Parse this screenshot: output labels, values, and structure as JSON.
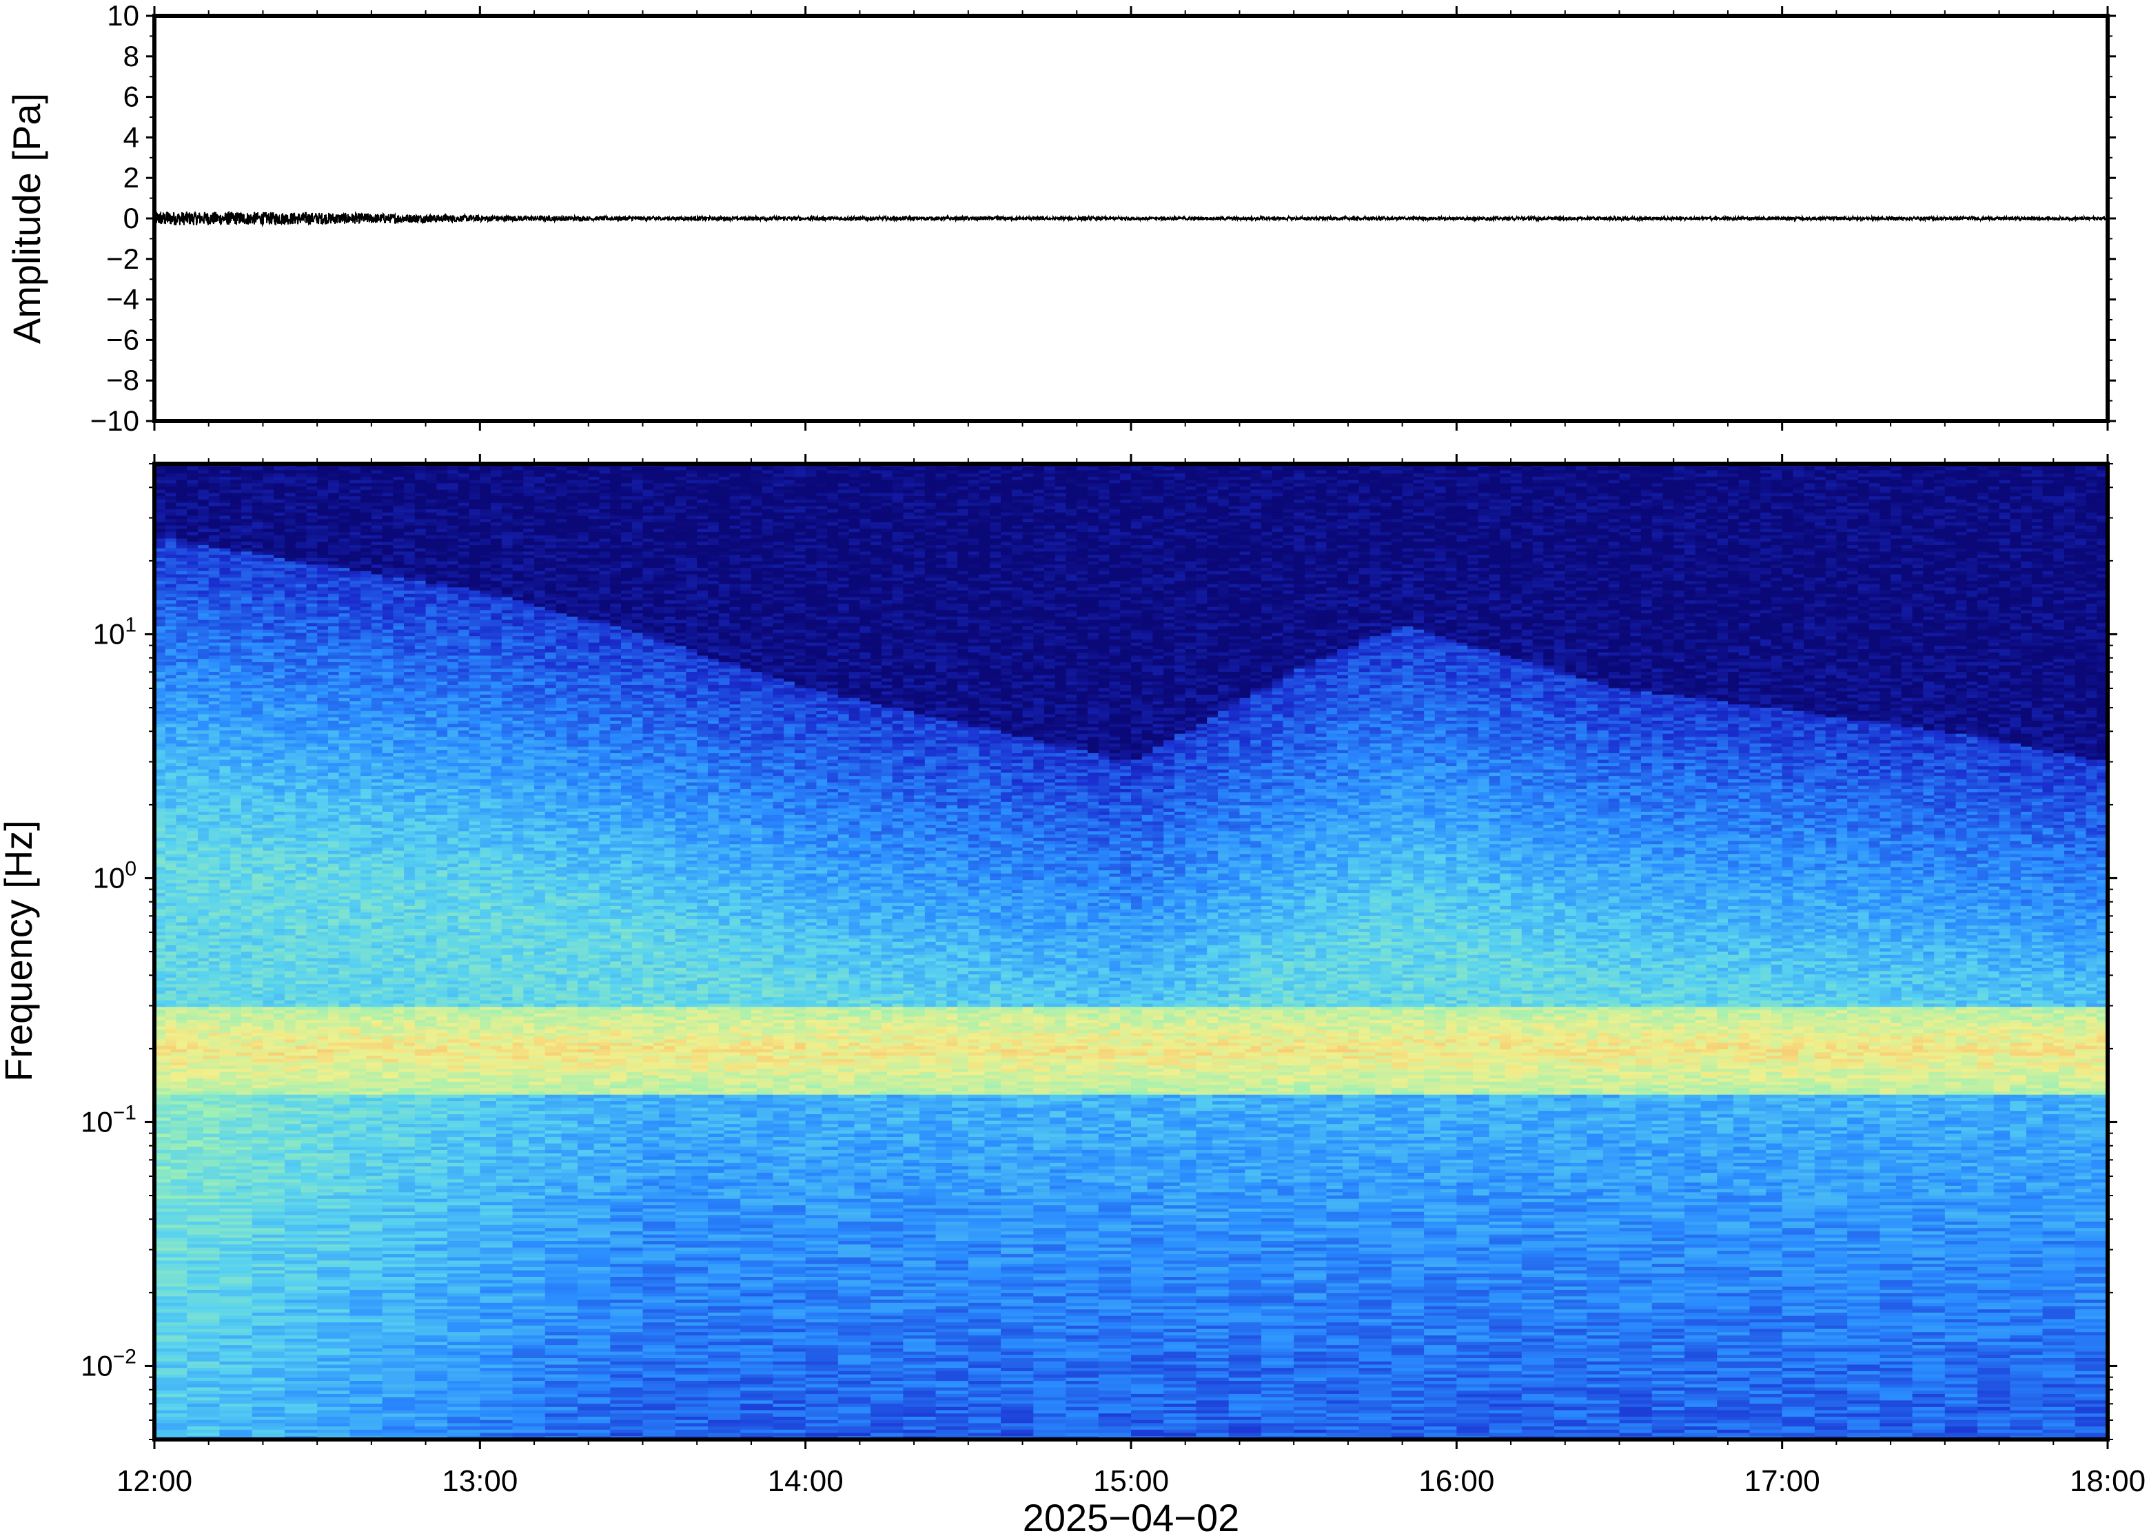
{
  "chart_data": [
    {
      "type": "line",
      "panel": "waveform",
      "ylabel": "Amplitude [Pa]",
      "ylim": [
        -10,
        10
      ],
      "yticks": [
        10,
        8,
        6,
        4,
        2,
        0,
        -2,
        -4,
        -6,
        -8,
        -10
      ],
      "ytick_labels": [
        "10",
        "8",
        "6",
        "4",
        "2",
        "0",
        "−2",
        "−4",
        "−6",
        "−8",
        "−10"
      ],
      "xlim": [
        "12:00",
        "18:00"
      ],
      "series": [
        {
          "x": [
            "12:00",
            "12:30",
            "13:00",
            "13:30",
            "14:00",
            "15:00",
            "16:00",
            "17:00",
            "18:00"
          ],
          "envelope": [
            0.35,
            0.3,
            0.15,
            0.1,
            0.1,
            0.08,
            0.08,
            0.08,
            0.08
          ]
        }
      ],
      "color": "#000000"
    },
    {
      "type": "heatmap",
      "panel": "spectrogram",
      "ylabel": "Frequency [Hz]",
      "xlabel": "2025−04−02",
      "yscale": "log",
      "ylim": [
        0.005,
        50
      ],
      "yticks": [
        {
          "value": 10,
          "base": "10",
          "exp": "1"
        },
        {
          "value": 1,
          "base": "10",
          "exp": "0"
        },
        {
          "value": 0.1,
          "base": "10",
          "exp": "−1"
        },
        {
          "value": 0.01,
          "base": "10",
          "exp": "−2"
        }
      ],
      "xticks": [
        "12:00",
        "13:00",
        "14:00",
        "15:00",
        "16:00",
        "17:00",
        "18:00"
      ],
      "xlim": [
        "12:00",
        "18:00"
      ],
      "colormap": [
        "#0b0878",
        "#1a2fd0",
        "#2a8cff",
        "#58d2f0",
        "#9ef0b4",
        "#f0f08c",
        "#ffb060"
      ],
      "features": {
        "microbarom_band_hz": [
          0.13,
          0.3
        ],
        "noise_ceiling_hz": [
          {
            "time": "12:00",
            "freq": 25
          },
          {
            "time": "13:00",
            "freq": 15
          },
          {
            "time": "13:30",
            "freq": 10
          },
          {
            "time": "14:00",
            "freq": 6
          },
          {
            "time": "15:00",
            "freq": 3
          },
          {
            "time": "15:30",
            "freq": 7
          },
          {
            "time": "15:50",
            "freq": 11
          },
          {
            "time": "16:30",
            "freq": 6
          },
          {
            "time": "17:30",
            "freq": 4
          },
          {
            "time": "18:00",
            "freq": 3
          }
        ]
      }
    }
  ]
}
